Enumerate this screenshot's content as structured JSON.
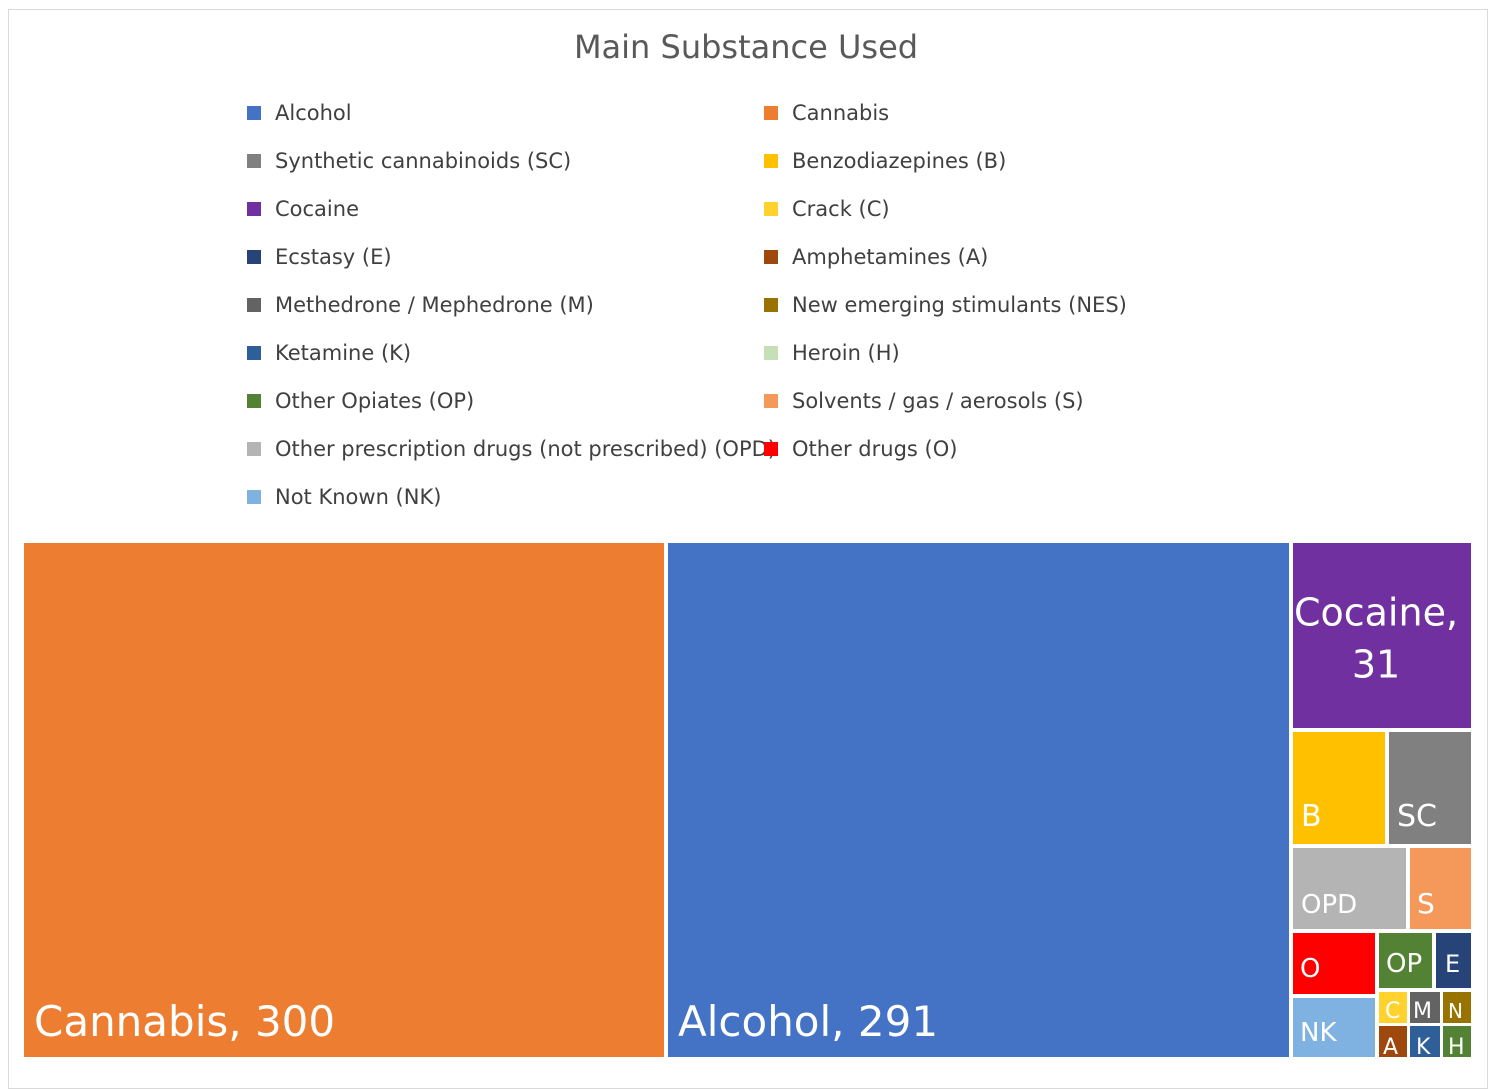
{
  "chart_data": {
    "type": "treemap",
    "title": "Main Substance Used",
    "legend_position": "top",
    "items": [
      {
        "name": "Cannabis",
        "label": "Cannabis, 300",
        "value": 300,
        "color": "#ED7D31"
      },
      {
        "name": "Alcohol",
        "label": "Alcohol, 291",
        "value": 291,
        "color": "#4472C4"
      },
      {
        "name": "Cocaine",
        "label": "Cocaine, 31",
        "value": 31,
        "color": "#7030A0"
      },
      {
        "name": "Benzodiazepines (B)",
        "label": "B",
        "value": 14,
        "color": "#FFC000"
      },
      {
        "name": "Synthetic cannabinoids (SC)",
        "label": "SC",
        "value": 13,
        "color": "#808080"
      },
      {
        "name": "Other prescription drugs (not prescribed) (OPD)",
        "label": "OPD",
        "value": 11,
        "color": "#B4B4B4"
      },
      {
        "name": "Solvents / gas / aerosols (S)",
        "label": "S",
        "value": 7,
        "color": "#F4995A"
      },
      {
        "name": "Other drugs (O)",
        "label": "O",
        "value": 7,
        "color": "#FF0000"
      },
      {
        "name": "Not Known (NK)",
        "label": "NK",
        "value": 7,
        "color": "#7FB2E1"
      },
      {
        "name": "Other Opiates (OP)",
        "label": "OP",
        "value": 4,
        "color": "#548235"
      },
      {
        "name": "Ecstasy (E)",
        "label": "E",
        "value": 2,
        "color": "#264478"
      },
      {
        "name": "Crack (C)",
        "label": "C",
        "value": 1,
        "color": "#FFD22E"
      },
      {
        "name": "Methedrone / Mephedrone (M)",
        "label": "M",
        "value": 1,
        "color": "#636363"
      },
      {
        "name": "New emerging stimulants (NES)",
        "label": "N",
        "value": 1,
        "color": "#997300"
      },
      {
        "name": "Amphetamines (A)",
        "label": "A",
        "value": 1,
        "color": "#9E480E"
      },
      {
        "name": "Ketamine (K)",
        "label": "K",
        "value": 1,
        "color": "#2F5F98"
      },
      {
        "name": "Heroin (H)",
        "label": "H",
        "value": 1,
        "color": "#548235"
      }
    ],
    "legend": [
      {
        "label": "Alcohol",
        "color": "#4472C4"
      },
      {
        "label": "Cannabis",
        "color": "#ED7D31"
      },
      {
        "label": "Synthetic cannabinoids (SC)",
        "color": "#808080"
      },
      {
        "label": "Benzodiazepines (B)",
        "color": "#FFC000"
      },
      {
        "label": "Cocaine",
        "color": "#7030A0"
      },
      {
        "label": "Crack (C)",
        "color": "#FFD22E"
      },
      {
        "label": "Ecstasy (E)",
        "color": "#264478"
      },
      {
        "label": "Amphetamines (A)",
        "color": "#9E480E"
      },
      {
        "label": "Methedrone / Mephedrone (M)",
        "color": "#636363"
      },
      {
        "label": "New emerging stimulants (NES)",
        "color": "#997300"
      },
      {
        "label": "Ketamine (K)",
        "color": "#2F5F98"
      },
      {
        "label": "Heroin (H)",
        "color": "#C5E0B4"
      },
      {
        "label": "Other Opiates (OP)",
        "color": "#548235"
      },
      {
        "label": "Solvents / gas / aerosols (S)",
        "color": "#F4995A"
      },
      {
        "label": "Other prescription drugs (not prescribed) (OPD)",
        "color": "#B4B4B4"
      },
      {
        "label": "Other drugs (O)",
        "color": "#FF0000"
      },
      {
        "label": "Not Known (NK)",
        "color": "#7FB2E1"
      }
    ]
  }
}
